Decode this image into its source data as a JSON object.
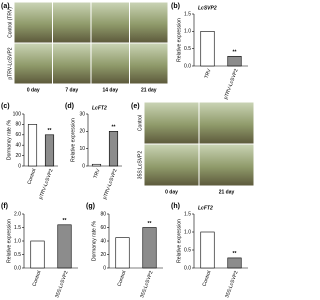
{
  "photo_panels": [
    {
      "panel": "(a)",
      "rows": [
        "Control (TRV)",
        "pTRV-LcSVP2"
      ],
      "columns": [
        "0 day",
        "7 day",
        "14 day",
        "21 day"
      ]
    },
    {
      "panel": "(e)",
      "rows": [
        "Control",
        "35S:LcSVP2"
      ],
      "columns": [
        "0 day",
        "21 day"
      ]
    }
  ],
  "chart_data": [
    {
      "type": "bar",
      "panel": "(b)",
      "title": "LcSVP2",
      "ylabel": "Relative expression",
      "categories": [
        "TRV",
        "pTRV-LcSVP2"
      ],
      "values": [
        1.0,
        0.28
      ],
      "value_annotations": [
        null,
        "**"
      ],
      "colors": [
        "#ffffff",
        "#8c8c8c"
      ],
      "ylim": [
        0,
        1.5
      ],
      "yticks": [
        {
          "value": 0,
          "label": "0.0"
        },
        0.5,
        {
          "value": 1,
          "label": "1.0"
        },
        1.5
      ]
    },
    {
      "type": "bar",
      "panel": "(c)",
      "ylabel": "Dormancy rate /%",
      "categories": [
        "Control",
        "pTRV-LcSVP2"
      ],
      "values": [
        80,
        60
      ],
      "value_annotations": [
        null,
        "**"
      ],
      "colors": [
        "#ffffff",
        "#8c8c8c"
      ],
      "ylim": [
        0,
        100
      ],
      "yticks": [
        0,
        20,
        40,
        60,
        80,
        100
      ]
    },
    {
      "type": "bar",
      "panel": "(d)",
      "title": "LcFT2",
      "ylabel": "Relative expression",
      "categories": [
        "TRV",
        "pTRV-LcSVP2"
      ],
      "values": [
        1,
        20
      ],
      "value_annotations": [
        null,
        "**"
      ],
      "colors": [
        "#ffffff",
        "#8c8c8c"
      ],
      "ylim": [
        0,
        30
      ],
      "yticks": [
        0,
        10,
        20,
        30
      ]
    },
    {
      "type": "bar",
      "panel": "(f)",
      "ylabel": "Relative expression",
      "categories": [
        "Control",
        "35S:LcSVP2"
      ],
      "values": [
        1.0,
        1.6
      ],
      "value_annotations": [
        null,
        "**"
      ],
      "colors": [
        "#ffffff",
        "#8c8c8c"
      ],
      "ylim": [
        0,
        2
      ],
      "yticks": [
        {
          "value": 0,
          "label": "0.0"
        },
        0.5,
        {
          "value": 1,
          "label": "1.0"
        },
        1.5,
        {
          "value": 2,
          "label": "2.0"
        }
      ]
    },
    {
      "type": "bar",
      "panel": "(g)",
      "ylabel": "Dormancy rate /%",
      "categories": [
        "Control",
        "35S:LcSVP2"
      ],
      "values": [
        45,
        60
      ],
      "value_annotations": [
        null,
        "**"
      ],
      "colors": [
        "#ffffff",
        "#8c8c8c"
      ],
      "ylim": [
        0,
        80
      ],
      "yticks": [
        0,
        20,
        40,
        60,
        80
      ]
    },
    {
      "type": "bar",
      "panel": "(h)",
      "title": "LcFT2",
      "ylabel": "Relative expression",
      "categories": [
        "Control",
        "35S:LcSVP2"
      ],
      "values": [
        1.0,
        0.28
      ],
      "value_annotations": [
        null,
        "**"
      ],
      "colors": [
        "#ffffff",
        "#8c8c8c"
      ],
      "ylim": [
        0,
        1.5
      ],
      "yticks": [
        {
          "value": 0,
          "label": "0.0"
        },
        0.5,
        {
          "value": 1,
          "label": "1.0"
        },
        1.5
      ]
    }
  ]
}
